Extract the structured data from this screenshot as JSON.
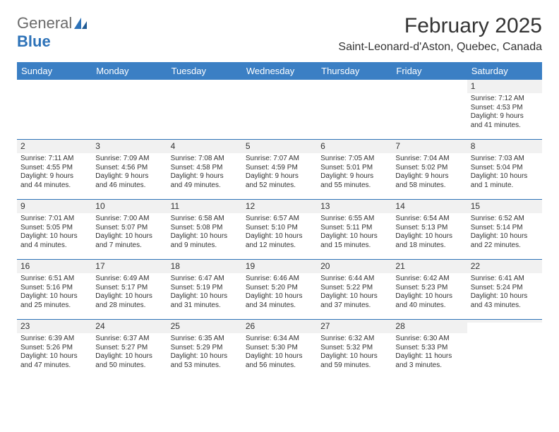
{
  "logo": {
    "text1": "General",
    "text2": "Blue"
  },
  "title": "February 2025",
  "location": "Saint-Leonard-d'Aston, Quebec, Canada",
  "colors": {
    "header_bg": "#3b7fc4",
    "header_text": "#ffffff",
    "divider": "#2d72b8",
    "daynum_bg": "#f1f1f1",
    "text": "#333333",
    "logo_gray": "#6b6b6b",
    "logo_blue": "#2d72b8",
    "page_bg": "#ffffff"
  },
  "day_names": [
    "Sunday",
    "Monday",
    "Tuesday",
    "Wednesday",
    "Thursday",
    "Friday",
    "Saturday"
  ],
  "weeks": [
    [
      null,
      null,
      null,
      null,
      null,
      null,
      {
        "n": "1",
        "sr": "Sunrise: 7:12 AM",
        "ss": "Sunset: 4:53 PM",
        "d1": "Daylight: 9 hours",
        "d2": "and 41 minutes."
      }
    ],
    [
      {
        "n": "2",
        "sr": "Sunrise: 7:11 AM",
        "ss": "Sunset: 4:55 PM",
        "d1": "Daylight: 9 hours",
        "d2": "and 44 minutes."
      },
      {
        "n": "3",
        "sr": "Sunrise: 7:09 AM",
        "ss": "Sunset: 4:56 PM",
        "d1": "Daylight: 9 hours",
        "d2": "and 46 minutes."
      },
      {
        "n": "4",
        "sr": "Sunrise: 7:08 AM",
        "ss": "Sunset: 4:58 PM",
        "d1": "Daylight: 9 hours",
        "d2": "and 49 minutes."
      },
      {
        "n": "5",
        "sr": "Sunrise: 7:07 AM",
        "ss": "Sunset: 4:59 PM",
        "d1": "Daylight: 9 hours",
        "d2": "and 52 minutes."
      },
      {
        "n": "6",
        "sr": "Sunrise: 7:05 AM",
        "ss": "Sunset: 5:01 PM",
        "d1": "Daylight: 9 hours",
        "d2": "and 55 minutes."
      },
      {
        "n": "7",
        "sr": "Sunrise: 7:04 AM",
        "ss": "Sunset: 5:02 PM",
        "d1": "Daylight: 9 hours",
        "d2": "and 58 minutes."
      },
      {
        "n": "8",
        "sr": "Sunrise: 7:03 AM",
        "ss": "Sunset: 5:04 PM",
        "d1": "Daylight: 10 hours",
        "d2": "and 1 minute."
      }
    ],
    [
      {
        "n": "9",
        "sr": "Sunrise: 7:01 AM",
        "ss": "Sunset: 5:05 PM",
        "d1": "Daylight: 10 hours",
        "d2": "and 4 minutes."
      },
      {
        "n": "10",
        "sr": "Sunrise: 7:00 AM",
        "ss": "Sunset: 5:07 PM",
        "d1": "Daylight: 10 hours",
        "d2": "and 7 minutes."
      },
      {
        "n": "11",
        "sr": "Sunrise: 6:58 AM",
        "ss": "Sunset: 5:08 PM",
        "d1": "Daylight: 10 hours",
        "d2": "and 9 minutes."
      },
      {
        "n": "12",
        "sr": "Sunrise: 6:57 AM",
        "ss": "Sunset: 5:10 PM",
        "d1": "Daylight: 10 hours",
        "d2": "and 12 minutes."
      },
      {
        "n": "13",
        "sr": "Sunrise: 6:55 AM",
        "ss": "Sunset: 5:11 PM",
        "d1": "Daylight: 10 hours",
        "d2": "and 15 minutes."
      },
      {
        "n": "14",
        "sr": "Sunrise: 6:54 AM",
        "ss": "Sunset: 5:13 PM",
        "d1": "Daylight: 10 hours",
        "d2": "and 18 minutes."
      },
      {
        "n": "15",
        "sr": "Sunrise: 6:52 AM",
        "ss": "Sunset: 5:14 PM",
        "d1": "Daylight: 10 hours",
        "d2": "and 22 minutes."
      }
    ],
    [
      {
        "n": "16",
        "sr": "Sunrise: 6:51 AM",
        "ss": "Sunset: 5:16 PM",
        "d1": "Daylight: 10 hours",
        "d2": "and 25 minutes."
      },
      {
        "n": "17",
        "sr": "Sunrise: 6:49 AM",
        "ss": "Sunset: 5:17 PM",
        "d1": "Daylight: 10 hours",
        "d2": "and 28 minutes."
      },
      {
        "n": "18",
        "sr": "Sunrise: 6:47 AM",
        "ss": "Sunset: 5:19 PM",
        "d1": "Daylight: 10 hours",
        "d2": "and 31 minutes."
      },
      {
        "n": "19",
        "sr": "Sunrise: 6:46 AM",
        "ss": "Sunset: 5:20 PM",
        "d1": "Daylight: 10 hours",
        "d2": "and 34 minutes."
      },
      {
        "n": "20",
        "sr": "Sunrise: 6:44 AM",
        "ss": "Sunset: 5:22 PM",
        "d1": "Daylight: 10 hours",
        "d2": "and 37 minutes."
      },
      {
        "n": "21",
        "sr": "Sunrise: 6:42 AM",
        "ss": "Sunset: 5:23 PM",
        "d1": "Daylight: 10 hours",
        "d2": "and 40 minutes."
      },
      {
        "n": "22",
        "sr": "Sunrise: 6:41 AM",
        "ss": "Sunset: 5:24 PM",
        "d1": "Daylight: 10 hours",
        "d2": "and 43 minutes."
      }
    ],
    [
      {
        "n": "23",
        "sr": "Sunrise: 6:39 AM",
        "ss": "Sunset: 5:26 PM",
        "d1": "Daylight: 10 hours",
        "d2": "and 47 minutes."
      },
      {
        "n": "24",
        "sr": "Sunrise: 6:37 AM",
        "ss": "Sunset: 5:27 PM",
        "d1": "Daylight: 10 hours",
        "d2": "and 50 minutes."
      },
      {
        "n": "25",
        "sr": "Sunrise: 6:35 AM",
        "ss": "Sunset: 5:29 PM",
        "d1": "Daylight: 10 hours",
        "d2": "and 53 minutes."
      },
      {
        "n": "26",
        "sr": "Sunrise: 6:34 AM",
        "ss": "Sunset: 5:30 PM",
        "d1": "Daylight: 10 hours",
        "d2": "and 56 minutes."
      },
      {
        "n": "27",
        "sr": "Sunrise: 6:32 AM",
        "ss": "Sunset: 5:32 PM",
        "d1": "Daylight: 10 hours",
        "d2": "and 59 minutes."
      },
      {
        "n": "28",
        "sr": "Sunrise: 6:30 AM",
        "ss": "Sunset: 5:33 PM",
        "d1": "Daylight: 11 hours",
        "d2": "and 3 minutes."
      },
      null
    ]
  ]
}
